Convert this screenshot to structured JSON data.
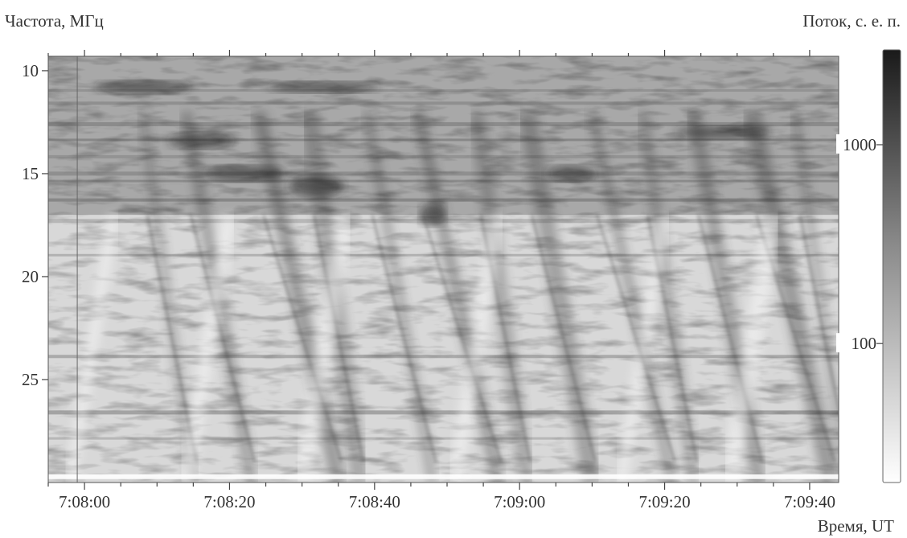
{
  "chart_data": {
    "type": "heatmap",
    "ylabel": "Частота, МГц",
    "xlabel": "Время, UT",
    "colorbar_label": "Поток, с. е. п.",
    "x_ticks": [
      "7:08:00",
      "7:08:20",
      "7:08:40",
      "7:09:00",
      "7:09:20",
      "7:09:40"
    ],
    "x_tick_seconds": [
      0,
      20,
      40,
      60,
      80,
      100
    ],
    "xlim_seconds": [
      -5,
      104
    ],
    "y_ticks": [
      10,
      15,
      20,
      25
    ],
    "ylim": [
      9.3,
      30
    ],
    "y_inverted": true,
    "colorbar_ticks": [
      1000,
      100
    ],
    "colorbar_range": [
      20,
      3000
    ],
    "colorbar_scale": "log",
    "colormap": [
      "#ffffff",
      "#1a1a1a"
    ],
    "x_minor_tick_step_seconds": 5,
    "bursts_description": "drifting bursts"
  }
}
